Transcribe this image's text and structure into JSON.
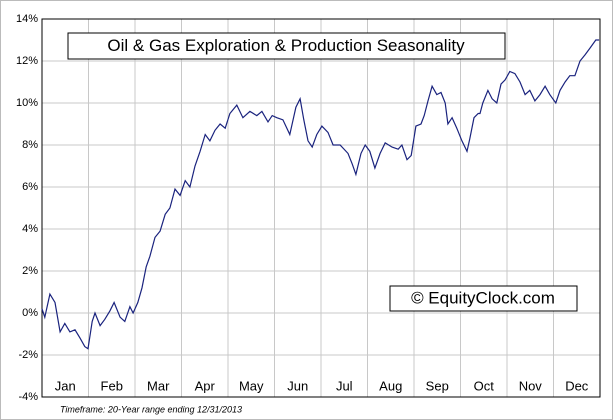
{
  "chart_data": {
    "type": "line",
    "title": "Oil & Gas Exploration & Production Seasonality",
    "watermark": "© EquityClock.com",
    "footnote": "Timeframe: 20-Year range ending 12/31/2013",
    "xlim": [
      0,
      12
    ],
    "xticks": [
      {
        "value": 0.5,
        "label": "Jan"
      },
      {
        "value": 1.5,
        "label": "Feb"
      },
      {
        "value": 2.5,
        "label": "Mar"
      },
      {
        "value": 3.5,
        "label": "Apr"
      },
      {
        "value": 4.5,
        "label": "May"
      },
      {
        "value": 5.5,
        "label": "Jun"
      },
      {
        "value": 6.5,
        "label": "Jul"
      },
      {
        "value": 7.5,
        "label": "Aug"
      },
      {
        "value": 8.5,
        "label": "Sep"
      },
      {
        "value": 9.5,
        "label": "Oct"
      },
      {
        "value": 10.5,
        "label": "Nov"
      },
      {
        "value": 11.5,
        "label": "Dec"
      }
    ],
    "ylim": [
      -4,
      14
    ],
    "yticks": [
      {
        "value": -4,
        "label": "-4%"
      },
      {
        "value": -2,
        "label": "-2%"
      },
      {
        "value": 0,
        "label": "0%"
      },
      {
        "value": 2,
        "label": "2%"
      },
      {
        "value": 4,
        "label": "4%"
      },
      {
        "value": 6,
        "label": "6%"
      },
      {
        "value": 8,
        "label": "8%"
      },
      {
        "value": 10,
        "label": "10%"
      },
      {
        "value": 12,
        "label": "12%"
      },
      {
        "value": 14,
        "label": "14%"
      }
    ],
    "grid": true,
    "x": [
      0,
      0.06,
      0.17,
      0.28,
      0.39,
      0.49,
      0.6,
      0.71,
      0.82,
      0.92,
      0.99,
      1.08,
      1.14,
      1.25,
      1.35,
      1.46,
      1.55,
      1.68,
      1.78,
      1.89,
      1.96,
      2.06,
      2.15,
      2.24,
      2.32,
      2.43,
      2.54,
      2.65,
      2.75,
      2.86,
      2.97,
      3.08,
      3.18,
      3.29,
      3.4,
      3.51,
      3.61,
      3.72,
      3.83,
      3.94,
      4.04,
      4.19,
      4.32,
      4.47,
      4.62,
      4.73,
      4.86,
      4.95,
      5.05,
      5.18,
      5.33,
      5.46,
      5.55,
      5.63,
      5.72,
      5.81,
      5.91,
      6.02,
      6.15,
      6.26,
      6.41,
      6.58,
      6.67,
      6.75,
      6.86,
      6.95,
      7.05,
      7.16,
      7.27,
      7.38,
      7.53,
      7.66,
      7.74,
      7.85,
      7.94,
      8.04,
      8.15,
      8.22,
      8.3,
      8.39,
      8.49,
      8.58,
      8.67,
      8.73,
      8.82,
      8.92,
      9.03,
      9.14,
      9.2,
      9.29,
      9.38,
      9.42,
      9.48,
      9.59,
      9.68,
      9.78,
      9.87,
      9.96,
      10.06,
      10.17,
      10.28,
      10.39,
      10.49,
      10.6,
      10.71,
      10.82,
      10.92,
      11.05,
      11.14,
      11.25,
      11.35,
      11.46,
      11.57,
      11.68,
      11.78,
      11.91,
      11.98
    ],
    "series": [
      {
        "color": "#1a237e",
        "values": [
          0.2,
          -0.2,
          0.9,
          0.5,
          -0.9,
          -0.5,
          -0.9,
          -0.8,
          -1.2,
          -1.6,
          -1.7,
          -0.4,
          0,
          -0.6,
          -0.3,
          0.1,
          0.5,
          -0.2,
          -0.4,
          0.3,
          0,
          0.5,
          1.2,
          2.2,
          2.7,
          3.6,
          3.9,
          4.7,
          5.0,
          5.9,
          5.6,
          6.3,
          6.0,
          7.0,
          7.7,
          8.5,
          8.2,
          8.7,
          9.0,
          8.8,
          9.5,
          9.9,
          9.3,
          9.6,
          9.4,
          9.6,
          9.1,
          9.4,
          9.3,
          9.2,
          8.5,
          9.8,
          10.2,
          9.2,
          8.2,
          7.9,
          8.5,
          8.9,
          8.6,
          8.0,
          8.0,
          7.6,
          7.1,
          6.6,
          7.6,
          8.0,
          7.7,
          6.9,
          7.6,
          8.1,
          7.9,
          7.8,
          8.0,
          7.3,
          7.5,
          8.9,
          9.0,
          9.4,
          10.1,
          10.8,
          10.4,
          10.5,
          10.0,
          9.0,
          9.3,
          8.8,
          8.2,
          7.7,
          8.3,
          9.3,
          9.5,
          9.5,
          10.0,
          10.6,
          10.2,
          10.0,
          10.9,
          11.1,
          11.5,
          11.4,
          11.0,
          10.4,
          10.6,
          10.1,
          10.4,
          10.8,
          10.4,
          10.0,
          10.6,
          11.0,
          11.3,
          11.3,
          12.0,
          12.3,
          12.6,
          13.0,
          13.0
        ]
      }
    ]
  }
}
